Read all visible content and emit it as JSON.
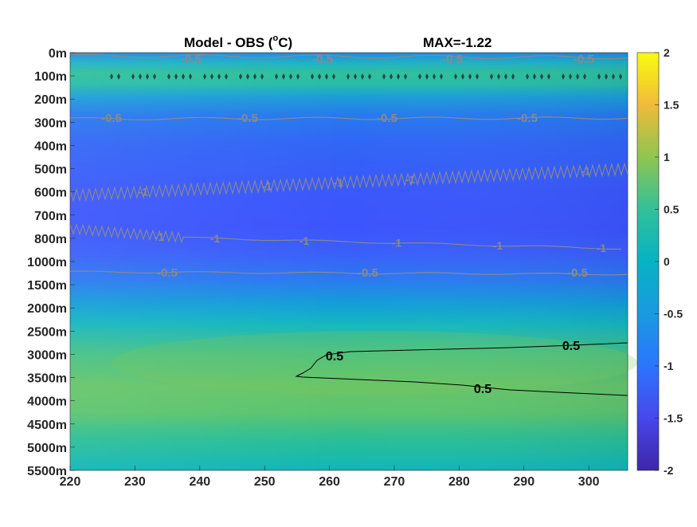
{
  "chart_data": {
    "type": "heatmap",
    "title_left": "Model - OBS (",
    "title_degree": "o",
    "title_unit": "C)",
    "title_right": "MAX=-1.22",
    "xlabel": "",
    "ylabel": "",
    "x_ticks": [
      "220",
      "230",
      "240",
      "250",
      "260",
      "270",
      "280",
      "290",
      "300"
    ],
    "x_tick_values": [
      220,
      230,
      240,
      250,
      260,
      270,
      280,
      290,
      300
    ],
    "xlim": [
      220,
      306
    ],
    "y_ticks": [
      "0m",
      "100m",
      "200m",
      "300m",
      "400m",
      "500m",
      "600m",
      "700m",
      "800m",
      "1000m",
      "1500m",
      "2000m",
      "2500m",
      "3000m",
      "3500m",
      "4000m",
      "4500m",
      "5000m",
      "5500m"
    ],
    "colorbar": {
      "ticks": [
        "2",
        "1.5",
        "1",
        "0.5",
        "0",
        "-0.5",
        "-1",
        "-1.5",
        "-2"
      ],
      "tick_values": [
        2,
        1.5,
        1,
        0.5,
        0,
        -0.5,
        -1,
        -1.5,
        -2
      ],
      "range": [
        -2,
        2
      ],
      "colormap": "parula"
    },
    "depth_profile": [
      {
        "depth": "0m",
        "value": -0.55
      },
      {
        "depth": "50m",
        "value": 0.05
      },
      {
        "depth": "100m",
        "value": 0.2
      },
      {
        "depth": "150m",
        "value": 0.0
      },
      {
        "depth": "200m",
        "value": -0.4
      },
      {
        "depth": "300m",
        "value": -0.7
      },
      {
        "depth": "400m",
        "value": -0.85
      },
      {
        "depth": "500m",
        "value": -0.95
      },
      {
        "depth": "600m",
        "value": -1.05
      },
      {
        "depth": "700m",
        "value": -1.1
      },
      {
        "depth": "800m",
        "value": -1.0
      },
      {
        "depth": "1000m",
        "value": -0.7
      },
      {
        "depth": "1500m",
        "value": -0.3
      },
      {
        "depth": "2000m",
        "value": 0.1
      },
      {
        "depth": "2500m",
        "value": 0.35
      },
      {
        "depth": "3000m",
        "value": 0.45
      },
      {
        "depth": "3500m",
        "value": 0.45
      },
      {
        "depth": "4000m",
        "value": 0.3
      },
      {
        "depth": "4500m",
        "value": 0.15
      },
      {
        "depth": "5000m",
        "value": 0.05
      },
      {
        "depth": "5500m",
        "value": 0.0
      }
    ],
    "contours": [
      {
        "level": "-0.5",
        "depth_band": "0-50m",
        "labels": [
          "-0.5",
          "-0.5",
          "-0.5",
          "-0.5"
        ]
      },
      {
        "level": "-0.5",
        "depth_band": "300m",
        "labels": [
          "-0.5",
          "-0.5",
          "-0.5",
          "-0.5"
        ]
      },
      {
        "level": "-1",
        "depth_band": "500-600m",
        "labels": [
          "-1",
          "-1",
          "-1",
          "-1",
          "-1"
        ]
      },
      {
        "level": "-1",
        "depth_band": "800m",
        "labels": [
          "-1",
          "-1",
          "-1",
          "-1",
          "-1",
          "-1"
        ]
      },
      {
        "level": "-0.5",
        "depth_band": "1200m",
        "labels": [
          "-0.5",
          "-0.5",
          "-0.5"
        ]
      },
      {
        "level": "0.5",
        "depth_band": "2700-3900m",
        "labels": [
          "0.5",
          "0.5",
          "0.5"
        ]
      }
    ]
  }
}
